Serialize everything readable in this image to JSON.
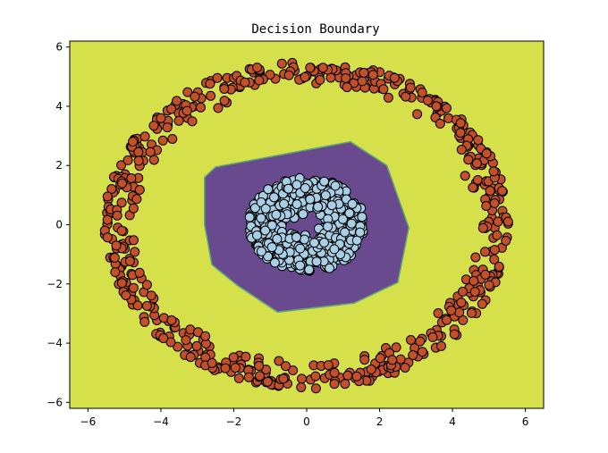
{
  "chart_data": {
    "type": "scatter",
    "title": "Decision Boundary",
    "xlabel": "",
    "ylabel": "",
    "xlim": [
      -6.5,
      6.5
    ],
    "ylim": [
      -6.2,
      6.2
    ],
    "xticks": [
      -6,
      -4,
      -2,
      0,
      2,
      4,
      6
    ],
    "yticks": [
      -6,
      -4,
      -2,
      0,
      2,
      4,
      6
    ],
    "grid": false,
    "legend": "none",
    "background_region": {
      "label": "class 1 region",
      "color": "#d5e04a"
    },
    "decision_region": {
      "label": "class 0 region",
      "color": "#6a4a8e",
      "edge_color": "#5ea67a",
      "polygon": [
        [
          -2.8,
          1.6
        ],
        [
          -2.5,
          1.95
        ],
        [
          1.2,
          2.8
        ],
        [
          2.2,
          2.0
        ],
        [
          2.8,
          -0.1
        ],
        [
          2.5,
          -1.95
        ],
        [
          1.3,
          -2.65
        ],
        [
          -0.8,
          -2.95
        ],
        [
          -1.9,
          -2.05
        ],
        [
          -2.6,
          -1.35
        ],
        [
          -2.8,
          0.0
        ]
      ]
    },
    "series": [
      {
        "class": 0,
        "shape": "annulus",
        "color": "#a8cfe6",
        "edge": "#000000",
        "count": 520,
        "center": [
          0.0,
          0.0
        ],
        "radius_range": [
          0.3,
          1.6
        ]
      },
      {
        "class": 1,
        "shape": "ring",
        "color": "#c4502a",
        "edge": "#000000",
        "count": 560,
        "center": [
          0.0,
          0.0
        ],
        "radius_range": [
          4.6,
          5.55
        ]
      }
    ]
  }
}
